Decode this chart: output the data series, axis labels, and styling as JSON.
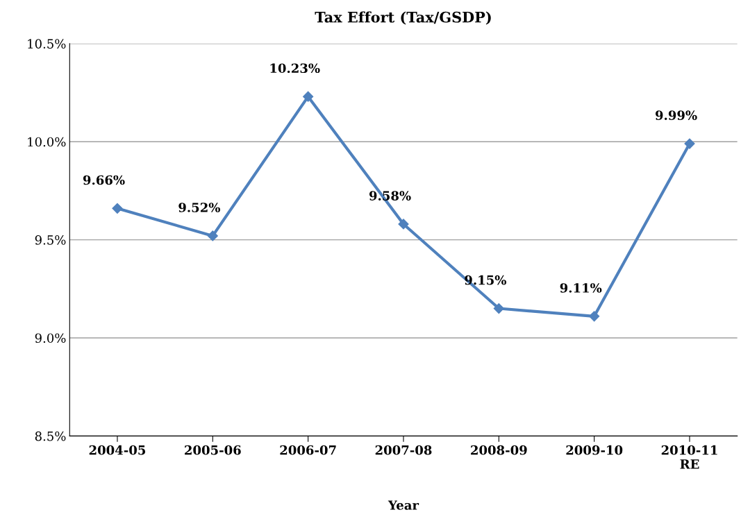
{
  "chart_data": {
    "type": "line",
    "title": "Tax Effort (Tax/GSDP)",
    "xlabel": "Year",
    "categories": [
      "2004-05",
      "2005-06",
      "2006-07",
      "2007-08",
      "2008-09",
      "2009-10",
      "2010-11\nRE"
    ],
    "series": [
      {
        "color": "#4f81bd",
        "values": [
          9.66,
          9.52,
          10.23,
          9.58,
          9.15,
          9.11,
          9.99
        ],
        "value_labels": [
          "9.66%",
          "9.52%",
          "10.23%",
          "9.58%",
          "9.15%",
          "9.11%",
          "9.99%"
        ]
      }
    ],
    "ylim": [
      8.5,
      10.5
    ],
    "yticks": [
      {
        "value": 8.5,
        "label": "8.5%"
      },
      {
        "value": 9.0,
        "label": "9.0%"
      },
      {
        "value": 9.5,
        "label": "9.5%"
      },
      {
        "value": 10.0,
        "label": "10.0%"
      },
      {
        "value": 10.5,
        "label": "10.5%"
      }
    ],
    "grid": "y",
    "marker": "diamond",
    "line_style": "solid",
    "legend": false
  }
}
